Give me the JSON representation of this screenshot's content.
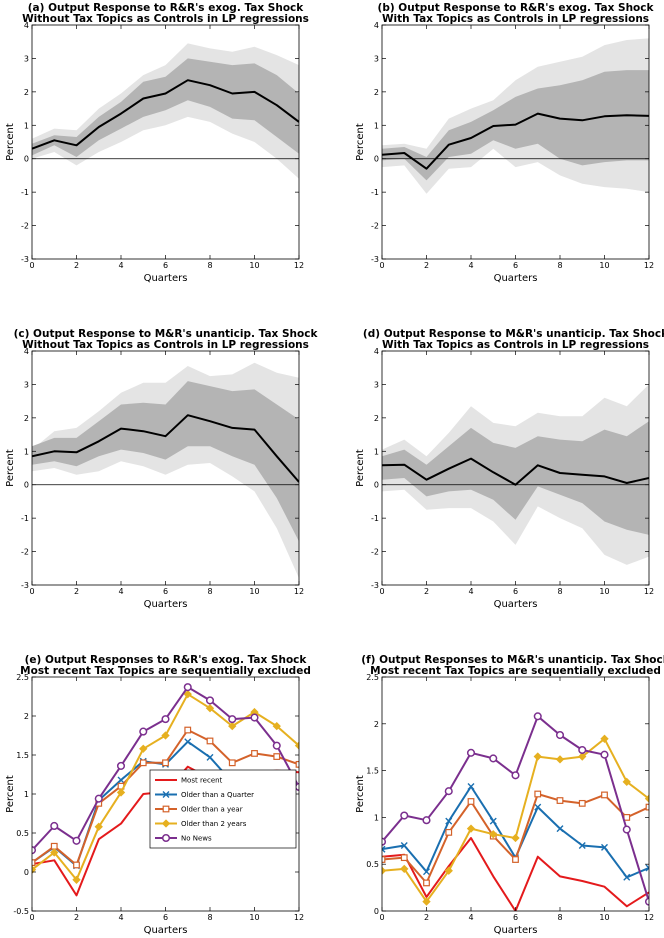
{
  "chart_data": [
    {
      "id": "a",
      "type": "area",
      "title": [
        "(a) Output Response to R&R's exog. Tax Shock",
        "Without Tax Topics as Controls in LP regressions"
      ],
      "xlabel": "Quarters",
      "ylabel": "Percent",
      "xlim": [
        0,
        12
      ],
      "ylim": [
        -3,
        4
      ],
      "xticks": [
        0,
        2,
        4,
        6,
        8,
        10,
        12
      ],
      "yticks": [
        -3,
        -2,
        -1,
        0,
        1,
        2,
        3,
        4
      ],
      "zero_line": true,
      "x": [
        0,
        1,
        2,
        3,
        4,
        5,
        6,
        7,
        8,
        9,
        10,
        11,
        12
      ],
      "series": [
        {
          "name": "outer_band",
          "lower": [
            0.0,
            0.2,
            -0.2,
            0.2,
            0.5,
            0.85,
            1.0,
            1.25,
            1.1,
            0.75,
            0.5,
            0.0,
            -0.6
          ],
          "upper": [
            0.6,
            0.9,
            0.85,
            1.5,
            1.95,
            2.5,
            2.8,
            3.45,
            3.3,
            3.2,
            3.35,
            3.1,
            2.8
          ],
          "color": "#e4e4e4"
        },
        {
          "name": "inner_band",
          "lower": [
            0.1,
            0.4,
            0.05,
            0.55,
            0.9,
            1.25,
            1.45,
            1.75,
            1.55,
            1.2,
            1.15,
            0.65,
            0.15
          ],
          "upper": [
            0.45,
            0.7,
            0.65,
            1.25,
            1.7,
            2.3,
            2.45,
            3.0,
            2.9,
            2.8,
            2.85,
            2.5,
            1.95
          ],
          "color": "#b4b4b4"
        },
        {
          "name": "point_estimate",
          "values": [
            0.3,
            0.55,
            0.4,
            0.95,
            1.35,
            1.8,
            1.95,
            2.35,
            2.2,
            1.95,
            2.0,
            1.6,
            1.1
          ],
          "color": "#000000"
        }
      ]
    },
    {
      "id": "b",
      "type": "area",
      "title": [
        "(b) Output Response to R&R's exog. Tax Shock",
        "With Tax Topics as Controls in LP regressions"
      ],
      "xlabel": "Quarters",
      "ylabel": "Percent",
      "xlim": [
        0,
        12
      ],
      "ylim": [
        -3,
        4
      ],
      "xticks": [
        0,
        2,
        4,
        6,
        8,
        10,
        12
      ],
      "yticks": [
        -3,
        -2,
        -1,
        0,
        1,
        2,
        3,
        4
      ],
      "zero_line": true,
      "x": [
        0,
        1,
        2,
        3,
        4,
        5,
        6,
        7,
        8,
        9,
        10,
        11,
        12
      ],
      "series": [
        {
          "name": "outer_band",
          "lower": [
            -0.25,
            -0.2,
            -1.05,
            -0.3,
            -0.25,
            0.3,
            -0.25,
            -0.1,
            -0.5,
            -0.75,
            -0.85,
            -0.9,
            -1.0
          ],
          "upper": [
            0.4,
            0.45,
            0.3,
            1.2,
            1.5,
            1.75,
            2.35,
            2.75,
            2.9,
            3.05,
            3.4,
            3.55,
            3.6
          ],
          "color": "#e4e4e4"
        },
        {
          "name": "inner_band",
          "lower": [
            -0.05,
            0.0,
            -0.65,
            0.05,
            0.15,
            0.55,
            0.3,
            0.45,
            0.0,
            -0.2,
            -0.1,
            -0.05,
            -0.05
          ],
          "upper": [
            0.3,
            0.35,
            0.05,
            0.85,
            1.1,
            1.45,
            1.85,
            2.1,
            2.2,
            2.35,
            2.6,
            2.65,
            2.65
          ],
          "color": "#b4b4b4"
        },
        {
          "name": "point_estimate",
          "values": [
            0.12,
            0.17,
            -0.3,
            0.42,
            0.62,
            0.98,
            1.02,
            1.35,
            1.2,
            1.15,
            1.27,
            1.3,
            1.28
          ],
          "color": "#000000"
        }
      ]
    },
    {
      "id": "c",
      "type": "area",
      "title": [
        "(c) Output Response to M&R's unanticip. Tax Shock",
        "Without Tax Topics as Controls in LP regressions"
      ],
      "xlabel": "Quarters",
      "ylabel": "Percent",
      "xlim": [
        0,
        12
      ],
      "ylim": [
        -3,
        4
      ],
      "xticks": [
        0,
        2,
        4,
        6,
        8,
        10,
        12
      ],
      "yticks": [
        -3,
        -2,
        -1,
        0,
        1,
        2,
        3,
        4
      ],
      "zero_line": true,
      "x": [
        0,
        1,
        2,
        3,
        4,
        5,
        6,
        7,
        8,
        9,
        10,
        11,
        12
      ],
      "series": [
        {
          "name": "outer_band",
          "lower": [
            0.4,
            0.5,
            0.3,
            0.4,
            0.7,
            0.55,
            0.3,
            0.6,
            0.65,
            0.25,
            -0.2,
            -1.3,
            -2.8
          ],
          "upper": [
            1.05,
            1.6,
            1.7,
            2.2,
            2.75,
            3.05,
            3.05,
            3.55,
            3.25,
            3.3,
            3.65,
            3.35,
            3.2
          ],
          "color": "#e4e4e4"
        },
        {
          "name": "inner_band",
          "lower": [
            0.6,
            0.7,
            0.55,
            0.85,
            1.05,
            0.95,
            0.75,
            1.15,
            1.15,
            0.85,
            0.6,
            -0.4,
            -1.7
          ],
          "upper": [
            1.15,
            1.4,
            1.4,
            1.9,
            2.4,
            2.45,
            2.4,
            3.1,
            2.95,
            2.8,
            2.85,
            2.4,
            1.95
          ],
          "color": "#b4b4b4"
        },
        {
          "name": "point_estimate",
          "values": [
            0.85,
            1.0,
            0.97,
            1.3,
            1.68,
            1.6,
            1.45,
            2.08,
            1.9,
            1.7,
            1.65,
            0.85,
            0.08
          ],
          "color": "#000000"
        }
      ]
    },
    {
      "id": "d",
      "type": "area",
      "title": [
        "(d) Output Response to M&R's unanticip. Tax Shock",
        "With Tax Topics as Controls in LP regressions"
      ],
      "xlabel": "Quarters",
      "ylabel": "Percent",
      "xlim": [
        0,
        12
      ],
      "ylim": [
        -3,
        4
      ],
      "xticks": [
        0,
        2,
        4,
        6,
        8,
        10,
        12
      ],
      "yticks": [
        -3,
        -2,
        -1,
        0,
        1,
        2,
        3,
        4
      ],
      "zero_line": true,
      "x": [
        0,
        1,
        2,
        3,
        4,
        5,
        6,
        7,
        8,
        9,
        10,
        11,
        12
      ],
      "series": [
        {
          "name": "outer_band",
          "lower": [
            -0.2,
            -0.15,
            -0.75,
            -0.7,
            -0.7,
            -1.1,
            -1.8,
            -0.65,
            -1.0,
            -1.3,
            -2.1,
            -2.4,
            -2.15
          ],
          "upper": [
            1.05,
            1.35,
            0.85,
            1.55,
            2.35,
            1.85,
            1.75,
            2.15,
            2.05,
            2.05,
            2.6,
            2.35,
            3.0
          ],
          "color": "#e4e4e4"
        },
        {
          "name": "inner_band",
          "lower": [
            0.15,
            0.2,
            -0.35,
            -0.2,
            -0.15,
            -0.45,
            -1.05,
            -0.05,
            -0.3,
            -0.55,
            -1.1,
            -1.35,
            -1.5
          ],
          "upper": [
            0.85,
            1.05,
            0.6,
            1.15,
            1.7,
            1.25,
            1.1,
            1.45,
            1.35,
            1.3,
            1.65,
            1.45,
            1.9
          ],
          "color": "#b4b4b4"
        },
        {
          "name": "point_estimate",
          "values": [
            0.58,
            0.6,
            0.15,
            0.48,
            0.78,
            0.37,
            0.0,
            0.58,
            0.35,
            0.3,
            0.25,
            0.05,
            0.2
          ],
          "color": "#000000"
        }
      ]
    },
    {
      "id": "e",
      "type": "line",
      "title": [
        "(e) Output Responses to R&R's exog. Tax Shock",
        "Most recent Tax Topics are sequentially excluded"
      ],
      "xlabel": "Quarters",
      "ylabel": "Percent",
      "xlim": [
        0,
        12
      ],
      "ylim": [
        -0.5,
        2.5
      ],
      "xticks": [
        0,
        2,
        4,
        6,
        8,
        10,
        12
      ],
      "yticks": [
        -0.5,
        0,
        0.5,
        1,
        1.5,
        2,
        2.5
      ],
      "zero_line": false,
      "legend": "lower-center",
      "x": [
        0,
        1,
        2,
        3,
        4,
        5,
        6,
        7,
        8,
        9,
        10,
        11,
        12
      ],
      "series": [
        {
          "name": "Most recent",
          "marker": "none",
          "color": "#e41a1c",
          "values": [
            0.1,
            0.15,
            -0.3,
            0.42,
            0.62,
            1.0,
            1.03,
            1.35,
            1.2,
            1.15,
            1.27,
            1.3,
            1.28
          ]
        },
        {
          "name": "Older than a Quarter",
          "marker": "x",
          "color": "#1a6fb0",
          "values": [
            0.12,
            0.32,
            0.08,
            0.92,
            1.18,
            1.42,
            1.38,
            1.67,
            1.47,
            1.15,
            1.25,
            1.14,
            1.1
          ]
        },
        {
          "name": "Older than a year",
          "marker": "square",
          "color": "#d4622a",
          "values": [
            0.12,
            0.33,
            0.09,
            0.88,
            1.1,
            1.4,
            1.4,
            1.82,
            1.68,
            1.4,
            1.52,
            1.48,
            1.38
          ]
        },
        {
          "name": "Older than 2 years",
          "marker": "diamond",
          "color": "#e6b020",
          "values": [
            0.03,
            0.25,
            -0.1,
            0.58,
            1.02,
            1.58,
            1.75,
            2.28,
            2.1,
            1.87,
            2.05,
            1.87,
            1.62
          ]
        },
        {
          "name": "No News",
          "marker": "circle",
          "color": "#7b2f8e",
          "values": [
            0.28,
            0.59,
            0.4,
            0.94,
            1.36,
            1.8,
            1.96,
            2.37,
            2.2,
            1.96,
            1.98,
            1.62,
            1.09
          ]
        }
      ]
    },
    {
      "id": "f",
      "type": "line",
      "title": [
        "(f) Output Responses to M&R's unanticip. Tax Shock",
        "Most recent Tax Topics are sequentially excluded"
      ],
      "xlabel": "Quarters",
      "ylabel": "Percent",
      "xlim": [
        0,
        12
      ],
      "ylim": [
        0,
        2.5
      ],
      "xticks": [
        0,
        2,
        4,
        6,
        8,
        10,
        12
      ],
      "yticks": [
        0,
        0.5,
        1,
        1.5,
        2,
        2.5
      ],
      "zero_line": false,
      "x": [
        0,
        1,
        2,
        3,
        4,
        5,
        6,
        7,
        8,
        9,
        10,
        11,
        12
      ],
      "series": [
        {
          "name": "Most recent",
          "marker": "none",
          "color": "#e41a1c",
          "values": [
            0.58,
            0.6,
            0.15,
            0.48,
            0.78,
            0.37,
            0.0,
            0.58,
            0.37,
            0.32,
            0.26,
            0.05,
            0.2
          ]
        },
        {
          "name": "Older than a Quarter",
          "marker": "x",
          "color": "#1a6fb0",
          "values": [
            0.66,
            0.7,
            0.42,
            0.96,
            1.33,
            0.96,
            0.57,
            1.11,
            0.88,
            0.7,
            0.68,
            0.36,
            0.46
          ]
        },
        {
          "name": "Older than a year",
          "marker": "square",
          "color": "#d4622a",
          "values": [
            0.55,
            0.57,
            0.3,
            0.84,
            1.17,
            0.8,
            0.55,
            1.25,
            1.18,
            1.15,
            1.24,
            1.0,
            1.11
          ]
        },
        {
          "name": "Older than 2 years",
          "marker": "diamond",
          "color": "#e6b020",
          "values": [
            0.43,
            0.45,
            0.1,
            0.43,
            0.88,
            0.82,
            0.78,
            1.65,
            1.62,
            1.65,
            1.84,
            1.38,
            1.2
          ]
        },
        {
          "name": "No News",
          "marker": "circle",
          "color": "#7b2f8e",
          "values": [
            0.74,
            1.02,
            0.97,
            1.28,
            1.69,
            1.63,
            1.45,
            2.08,
            1.88,
            1.72,
            1.67,
            0.87,
            0.1
          ]
        }
      ]
    }
  ]
}
